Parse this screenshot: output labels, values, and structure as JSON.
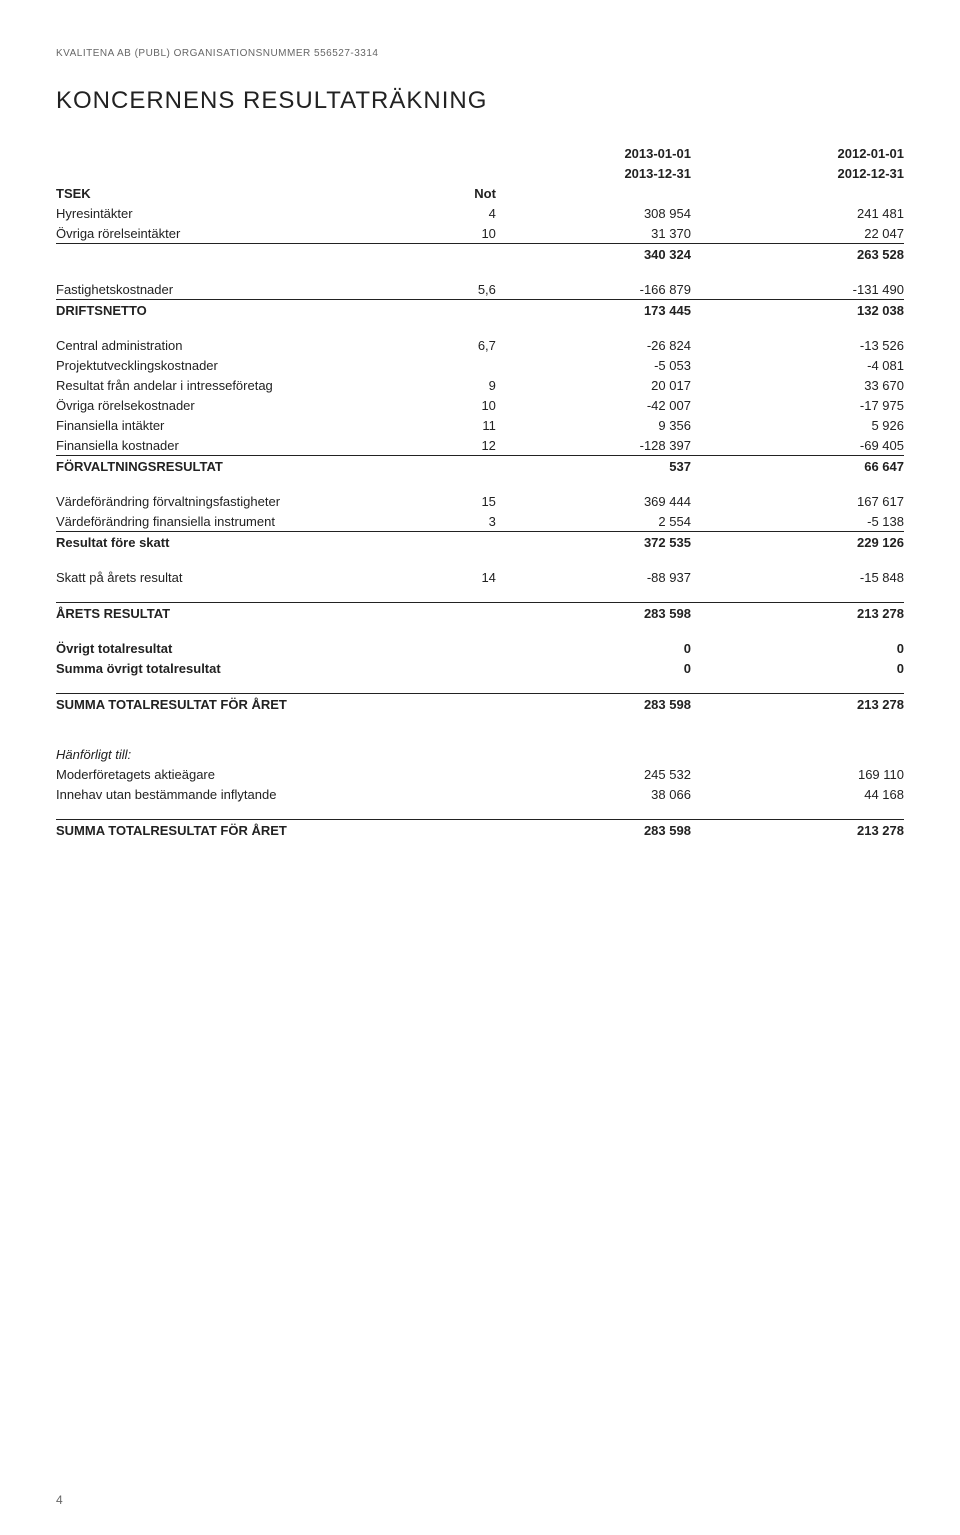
{
  "header_line": "KVALITENA AB (PUBL)  ORGANISATIONSNUMMER 556527-3314",
  "title": "KONCERNENS RESULTATRÄKNING",
  "period_labels": {
    "start1": "2013-01-01",
    "end1": "2013-12-31",
    "start2": "2012-01-01",
    "end2": "2012-12-31"
  },
  "tsek": "TSEK",
  "not": "Not",
  "rows": [
    {
      "desc": "Hyresintäkter",
      "note": "4",
      "c1": "308 954",
      "c2": "241 481"
    },
    {
      "desc": "Övriga rörelseintäkter",
      "note": "10",
      "c1": "31 370",
      "c2": "22 047"
    }
  ],
  "subtotal1": {
    "c1": "340 324",
    "c2": "263 528"
  },
  "fastighet": {
    "desc": "Fastighetskostnader",
    "note": "5,6",
    "c1": "-166 879",
    "c2": "-131 490"
  },
  "driftsnetto": {
    "desc": "DRIFTSNETTO",
    "c1": "173 445",
    "c2": "132 038"
  },
  "block2": [
    {
      "desc": "Central administration",
      "note": "6,7",
      "c1": "-26 824",
      "c2": "-13 526"
    },
    {
      "desc": "Projektutvecklingskostnader",
      "note": "",
      "c1": "-5 053",
      "c2": "-4 081"
    },
    {
      "desc": "Resultat från andelar i intresseföretag",
      "note": "9",
      "c1": "20 017",
      "c2": "33 670"
    },
    {
      "desc": "Övriga rörelsekostnader",
      "note": "10",
      "c1": "-42 007",
      "c2": "-17 975"
    },
    {
      "desc": "Finansiella intäkter",
      "note": "11",
      "c1": "9 356",
      "c2": "5 926"
    },
    {
      "desc": "Finansiella kostnader",
      "note": "12",
      "c1": "-128 397",
      "c2": "-69 405"
    }
  ],
  "forvaltning": {
    "desc": "FÖRVALTNINGSRESULTAT",
    "c1": "537",
    "c2": "66 647"
  },
  "block3": [
    {
      "desc": "Värdeförändring förvaltningsfastigheter",
      "note": "15",
      "c1": "369 444",
      "c2": "167 617"
    },
    {
      "desc": "Värdeförändring finansiella instrument",
      "note": "3",
      "c1": "2 554",
      "c2": "-5 138"
    }
  ],
  "resultat_fore_skatt": {
    "desc": "Resultat före skatt",
    "c1": "372 535",
    "c2": "229 126"
  },
  "skatt": {
    "desc": "Skatt på årets resultat",
    "note": "14",
    "c1": "-88 937",
    "c2": "-15 848"
  },
  "arets_resultat": {
    "desc": "ÅRETS RESULTAT",
    "c1": "283 598",
    "c2": "213 278"
  },
  "ovrigt": [
    {
      "desc": "Övrigt totalresultat",
      "c1": "0",
      "c2": "0"
    },
    {
      "desc": "Summa övrigt totalresultat",
      "c1": "0",
      "c2": "0"
    }
  ],
  "summa_total": {
    "desc": "SUMMA TOTALRESULTAT FÖR ÅRET",
    "c1": "283 598",
    "c2": "213 278"
  },
  "hanforligt": "Hänförligt till:",
  "hanforligt_rows": [
    {
      "desc": "Moderföretagets aktieägare",
      "c1": "245 532",
      "c2": "169 110"
    },
    {
      "desc": "Innehav utan bestämmande inflytande",
      "c1": "38 066",
      "c2": "44 168"
    }
  ],
  "summa_total2": {
    "desc": "SUMMA TOTALRESULTAT FÖR ÅRET",
    "c1": "283 598",
    "c2": "213 278"
  },
  "page_number": "4"
}
